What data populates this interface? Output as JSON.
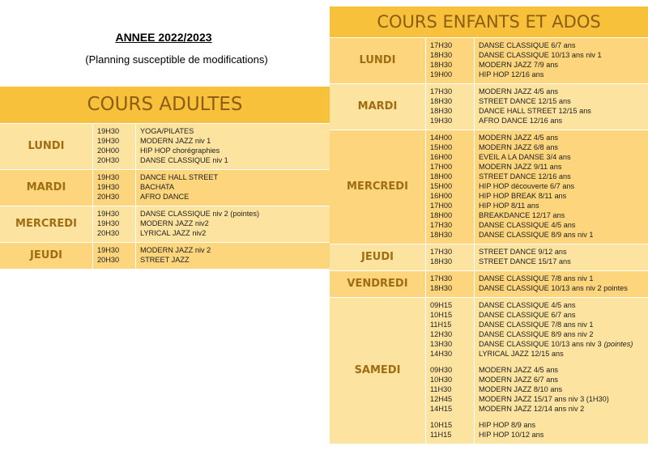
{
  "header": {
    "title": "ANNEE 2022/2023",
    "subtitle": "(Planning susceptible de modifications)"
  },
  "adults": {
    "title": "COURS ADULTES",
    "days": [
      {
        "day": "LUNDI",
        "groups": [
          [
            {
              "time": "19H30",
              "course": "YOGA/PILATES"
            },
            {
              "time": "19H30",
              "course": "MODERN JAZZ niv 1"
            },
            {
              "time": "20H00",
              "course": "HIP HOP  chorégraphies"
            },
            {
              "time": "20H30",
              "course": "DANSE CLASSIQUE niv 1"
            }
          ]
        ]
      },
      {
        "day": "MARDI",
        "groups": [
          [
            {
              "time": "19H30",
              "course": "DANCE HALL STREET"
            },
            {
              "time": "19H30",
              "course": "BACHATA"
            },
            {
              "time": "20H30",
              "course": "AFRO DANCE"
            }
          ]
        ]
      },
      {
        "day": "MERCREDI",
        "groups": [
          [
            {
              "time": "19H30",
              "course": "DANSE CLASSIQUE niv 2 (pointes)"
            },
            {
              "time": "19H30",
              "course": "MODERN JAZZ niv2"
            },
            {
              "time": "20H30",
              "course": "LYRICAL JAZZ  niv2"
            }
          ]
        ]
      },
      {
        "day": "JEUDI",
        "groups": [
          [
            {
              "time": "19H30",
              "course": "MODERN JAZZ niv 2"
            },
            {
              "time": "20H30",
              "course": "STREET JAZZ"
            }
          ]
        ]
      }
    ]
  },
  "kids": {
    "title": "COURS ENFANTS ET ADOS",
    "days": [
      {
        "day": "LUNDI",
        "groups": [
          [
            {
              "time": "17H30",
              "course": "DANSE CLASSIQUE 6/7 ans"
            },
            {
              "time": "18H30",
              "course": "DANSE CLASSIQUE 10/13 ans niv 1"
            },
            {
              "time": "18H30",
              "course": "MODERN JAZZ 7/9 ans"
            },
            {
              "time": "19H00",
              "course": "HIP HOP 12/16 ans"
            }
          ]
        ]
      },
      {
        "day": "MARDI",
        "groups": [
          [
            {
              "time": "17H30",
              "course": "MODERN JAZZ 4/5 ans"
            },
            {
              "time": "18H30",
              "course": "STREET DANCE 12/15 ans"
            },
            {
              "time": "18H30",
              "course": "DANCE HALL STREET 12/15 ans"
            },
            {
              "time": "19H30",
              "course": "AFRO DANCE 12/16 ans"
            }
          ]
        ]
      },
      {
        "day": "MERCREDI",
        "groups": [
          [
            {
              "time": "14H00",
              "course": "MODERN JAZZ  4/5 ans"
            },
            {
              "time": "15H00",
              "course": "MODERN JAZZ  6/8 ans"
            },
            {
              "time": "16H00",
              "course": "EVEIL A LA DANSE 3/4 ans"
            },
            {
              "time": "17H00",
              "course": "MODERN JAZZ 9/11 ans"
            },
            {
              "time": "18H00",
              "course": "STREET DANCE 12/16 ans"
            },
            {
              "time": "15H00",
              "course": "HIP HOP découverte 6/7 ans"
            },
            {
              "time": "16H00",
              "course": "HIP HOP BREAK  8/11 ans"
            },
            {
              "time": "17H00",
              "course": "HIP HOP 8/11 ans"
            },
            {
              "time": "18H00",
              "course": "BREAKDANCE 12/17 ans"
            },
            {
              "time": "17H30",
              "course": "DANSE CLASSIQUE 4/5 ans"
            },
            {
              "time": "18H30",
              "course": "DANSE CLASSIQUE 8/9 ans niv 1"
            }
          ]
        ]
      },
      {
        "day": "JEUDI",
        "groups": [
          [
            {
              "time": "17H30",
              "course": "STREET DANCE 9/12 ans"
            },
            {
              "time": "18H30",
              "course": "STREET DANCE 15/17 ans"
            }
          ]
        ]
      },
      {
        "day": "VENDREDI",
        "groups": [
          [
            {
              "time": "17H30",
              "course": "DANSE CLASSIQUE 7/8 ans niv 1"
            },
            {
              "time": "18H30",
              "course": "DANSE CLASSIQUE 10/13 ans niv 2 pointes"
            }
          ]
        ]
      },
      {
        "day": "SAMEDI",
        "groups": [
          [
            {
              "time": "09H15",
              "course": "DANSE CLASSIQUE 4/5 ans"
            },
            {
              "time": "10H15",
              "course": "DANSE CLASSIQUE 6/7 ans"
            },
            {
              "time": "11H15",
              "course": "DANSE CLASSIQUE 7/8 ans  niv 1"
            },
            {
              "time": "12H30",
              "course": "DANSE CLASSIQUE 8/9 ans  niv 2"
            },
            {
              "time": "13H30",
              "course": "DANSE CLASSIQUE 10/13 ans niv 3",
              "note": "(pointes)"
            },
            {
              "time": "14H30",
              "course": "LYRICAL JAZZ 12/15 ans"
            }
          ],
          [
            {
              "time": "09H30",
              "course": "MODERN JAZZ 4/5 ans"
            },
            {
              "time": "10H30",
              "course": "MODERN JAZZ 6/7 ans"
            },
            {
              "time": "11H30",
              "course": "MODERN JAZZ 8/10 ans"
            },
            {
              "time": "12H45",
              "course": "MODERN JAZZ 15/17 ans niv 3 (1H30)"
            },
            {
              "time": "14H15",
              "course": "MODERN JAZZ 12/14 ans niv 2"
            }
          ],
          [
            {
              "time": "10H15",
              "course": "HIP HOP 8/9 ans"
            },
            {
              "time": "11H15",
              "course": "HIP HOP 10/12 ans"
            }
          ]
        ]
      }
    ]
  }
}
